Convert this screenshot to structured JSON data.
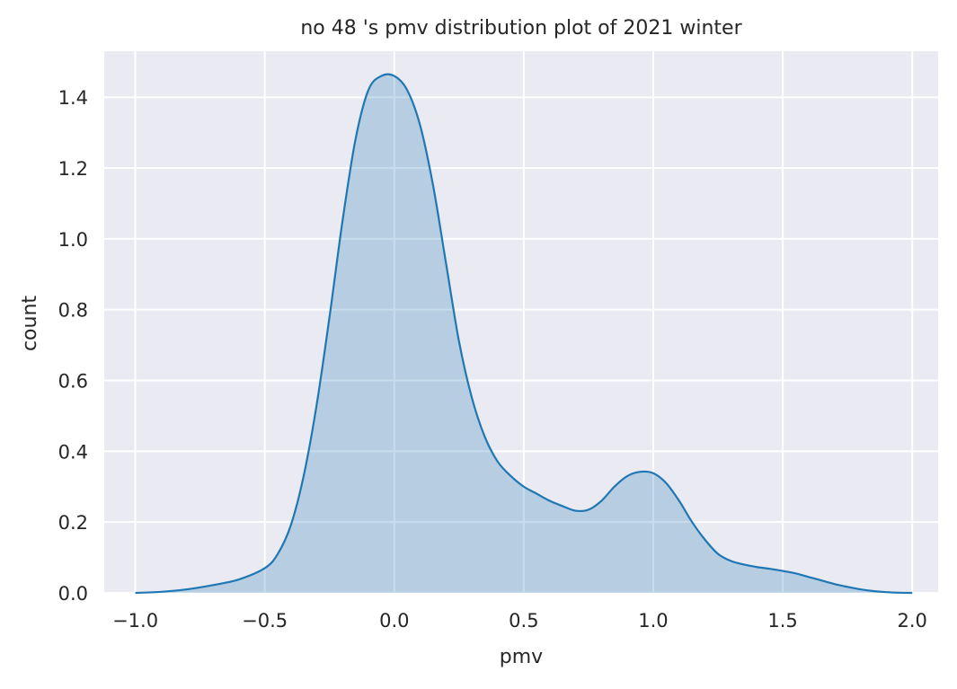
{
  "chart_data": {
    "type": "area",
    "title": "no 48 's pmv distribution plot of 2021 winter",
    "xlabel": "pmv",
    "ylabel": "count",
    "xlim": [
      -1.12,
      2.1
    ],
    "ylim": [
      0.0,
      1.53
    ],
    "grid": true,
    "x_ticks": [
      -1.0,
      -0.5,
      0.0,
      0.5,
      1.0,
      1.5,
      2.0
    ],
    "x_tick_labels": [
      "−1.0",
      "−0.5",
      "0.0",
      "0.5",
      "1.0",
      "1.5",
      "2.0"
    ],
    "y_ticks": [
      0.0,
      0.2,
      0.4,
      0.6,
      0.8,
      1.0,
      1.2,
      1.4
    ],
    "y_tick_labels": [
      "0.0",
      "0.2",
      "0.4",
      "0.6",
      "0.8",
      "1.0",
      "1.2",
      "1.4"
    ],
    "colors": {
      "background": "#eaeaf2",
      "grid": "#ffffff",
      "line": "#1f77b4",
      "fill": "#1f77b4"
    },
    "series": [
      {
        "x": [
          -1.0,
          -0.9,
          -0.8,
          -0.7,
          -0.6,
          -0.5,
          -0.45,
          -0.4,
          -0.35,
          -0.3,
          -0.25,
          -0.2,
          -0.15,
          -0.1,
          -0.05,
          0.0,
          0.05,
          0.1,
          0.15,
          0.2,
          0.25,
          0.3,
          0.35,
          0.4,
          0.45,
          0.5,
          0.55,
          0.6,
          0.65,
          0.7,
          0.75,
          0.8,
          0.85,
          0.9,
          0.95,
          1.0,
          1.05,
          1.1,
          1.15,
          1.2,
          1.25,
          1.3,
          1.35,
          1.4,
          1.45,
          1.5,
          1.55,
          1.6,
          1.65,
          1.7,
          1.75,
          1.8,
          1.85,
          1.9,
          1.95,
          2.0
        ],
        "y": [
          0.0,
          0.003,
          0.01,
          0.022,
          0.038,
          0.07,
          0.11,
          0.19,
          0.33,
          0.53,
          0.78,
          1.05,
          1.28,
          1.42,
          1.46,
          1.46,
          1.42,
          1.32,
          1.15,
          0.93,
          0.71,
          0.55,
          0.44,
          0.37,
          0.33,
          0.3,
          0.28,
          0.26,
          0.245,
          0.232,
          0.235,
          0.26,
          0.3,
          0.33,
          0.342,
          0.338,
          0.31,
          0.26,
          0.2,
          0.15,
          0.11,
          0.09,
          0.08,
          0.073,
          0.068,
          0.062,
          0.055,
          0.045,
          0.035,
          0.025,
          0.017,
          0.01,
          0.005,
          0.002,
          0.0005,
          0.0
        ]
      }
    ]
  }
}
